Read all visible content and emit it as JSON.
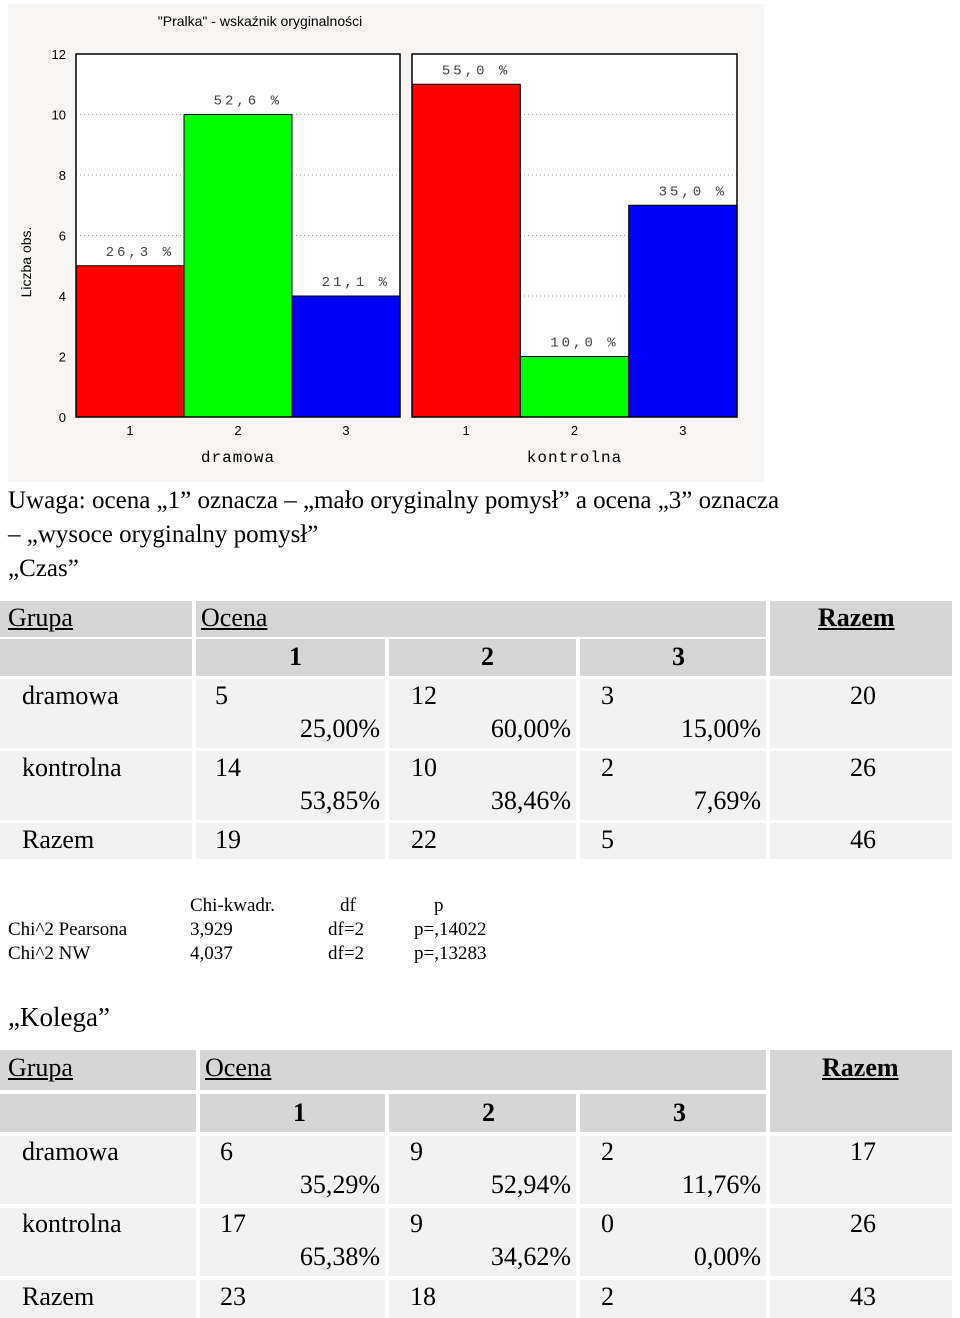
{
  "chart_data": {
    "type": "bar",
    "title": "\"Pralka\" - wskaźnik oryginalności",
    "ylabel": "Liczba obs.",
    "ylim": [
      0,
      12
    ],
    "yticks": [
      "0",
      "2",
      "4",
      "6",
      "8",
      "10",
      "12"
    ],
    "groups": [
      {
        "name": "dramowa",
        "categories": [
          "1",
          "2",
          "3"
        ],
        "values": [
          5,
          10,
          4
        ],
        "labels": [
          "26,3 %",
          "52,6 %",
          "21,1 %"
        ]
      },
      {
        "name": "kontrolna",
        "categories": [
          "1",
          "2",
          "3"
        ],
        "values": [
          11,
          2,
          7
        ],
        "labels": [
          "55,0 %",
          "10,0 %",
          "35,0 %"
        ]
      }
    ],
    "colors": [
      "#ff0000",
      "#00ff00",
      "#0000ff"
    ],
    "grid": true
  },
  "notes": {
    "line1": "Uwaga: ocena „1” oznacza – „mało oryginalny pomysł” a ocena „3” oznacza",
    "line2": "– „wysoce oryginalny pomysł”",
    "czas_heading": "„Czas”",
    "kolega_heading": "„Kolega”"
  },
  "table_czas": {
    "h_group": "Grupa",
    "h_ocena": "Ocena",
    "h_razem": "Razem",
    "grades": [
      "1",
      "2",
      "3"
    ],
    "rows": [
      {
        "name": "dramowa",
        "counts": [
          "5",
          "12",
          "3"
        ],
        "pcts": [
          "25,00%",
          "60,00%",
          "15,00%"
        ],
        "total": "20"
      },
      {
        "name": "kontrolna",
        "counts": [
          "14",
          "10",
          "2"
        ],
        "pcts": [
          "53,85%",
          "38,46%",
          "7,69%"
        ],
        "total": "26"
      }
    ],
    "total_row": {
      "name": "Razem",
      "counts": [
        "19",
        "22",
        "5"
      ],
      "total": "46"
    }
  },
  "chi_czas": {
    "h_chi": "Chi-kwadr.",
    "h_df": "df",
    "h_p": "p",
    "rows": [
      {
        "name": "Chi^2 Pearsona",
        "chi": "3,929",
        "df": "df=2",
        "p": "p=,14022"
      },
      {
        "name": "Chi^2 NW",
        "chi": "4,037",
        "df": "df=2",
        "p": "p=,13283"
      }
    ]
  },
  "table_kolega": {
    "h_group": "Grupa",
    "h_ocena": "Ocena",
    "h_razem": "Razem",
    "grades": [
      "1",
      "2",
      "3"
    ],
    "rows": [
      {
        "name": "dramowa",
        "counts": [
          "6",
          "9",
          "2"
        ],
        "pcts": [
          "35,29%",
          "52,94%",
          "11,76%"
        ],
        "total": "17"
      },
      {
        "name": "kontrolna",
        "counts": [
          "17",
          "9",
          "0"
        ],
        "pcts": [
          "65,38%",
          "34,62%",
          "0,00%"
        ],
        "total": "26"
      }
    ],
    "total_row": {
      "name": "Razem",
      "counts": [
        "23",
        "18",
        "2"
      ],
      "total": "43"
    }
  }
}
